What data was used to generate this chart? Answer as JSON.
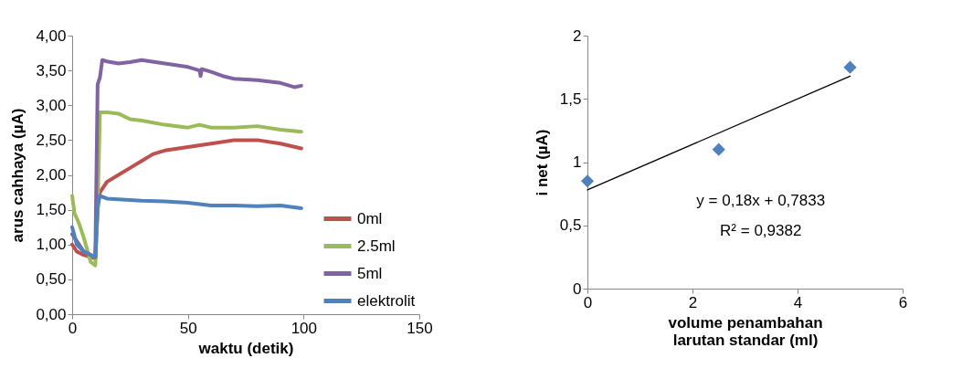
{
  "chart_data": [
    {
      "type": "line",
      "xlabel": "waktu (detik)",
      "ylabel": "arus cahhaya (µA)",
      "xlim": [
        0,
        150
      ],
      "xticks": [
        0,
        50,
        100,
        150
      ],
      "ylim": [
        0,
        4
      ],
      "yticks": [
        {
          "value": 0,
          "label": "0,00"
        },
        {
          "value": 0.5,
          "label": "0,50"
        },
        {
          "value": 1,
          "label": "1,00"
        },
        {
          "value": 1.5,
          "label": "1,50"
        },
        {
          "value": 2,
          "label": "2,00"
        },
        {
          "value": 2.5,
          "label": "2,50"
        },
        {
          "value": 3,
          "label": "3,00"
        },
        {
          "value": 3.5,
          "label": "3,50"
        },
        {
          "value": 4,
          "label": "4,00"
        }
      ],
      "legend": "bottom right",
      "grid": false,
      "line_style": "solid",
      "series": [
        {
          "name": "0ml",
          "color": "#c0504d",
          "x": [
            0,
            2,
            5,
            10,
            11,
            12,
            15,
            20,
            25,
            30,
            35,
            40,
            50,
            60,
            70,
            80,
            90,
            99
          ],
          "values": [
            1.0,
            0.9,
            0.85,
            0.8,
            1.5,
            1.75,
            1.9,
            2.0,
            2.1,
            2.2,
            2.3,
            2.35,
            2.4,
            2.45,
            2.5,
            2.5,
            2.45,
            2.38
          ]
        },
        {
          "name": "2.5ml",
          "color": "#9bbb59",
          "x": [
            0,
            1,
            3,
            5,
            8,
            10,
            11,
            12,
            15,
            20,
            25,
            30,
            40,
            50,
            55,
            60,
            70,
            80,
            90,
            99
          ],
          "values": [
            1.7,
            1.45,
            1.3,
            1.1,
            0.75,
            0.7,
            1.5,
            2.9,
            2.9,
            2.88,
            2.8,
            2.78,
            2.72,
            2.68,
            2.72,
            2.68,
            2.68,
            2.7,
            2.65,
            2.62
          ]
        },
        {
          "name": "5ml",
          "color": "#8064a2",
          "x": [
            0,
            5,
            10,
            11,
            12,
            13,
            15,
            20,
            25,
            30,
            40,
            50,
            55,
            55.5,
            56,
            60,
            65,
            70,
            80,
            90,
            96,
            99
          ],
          "values": [
            1.15,
            0.9,
            0.82,
            3.3,
            3.4,
            3.65,
            3.63,
            3.6,
            3.62,
            3.65,
            3.6,
            3.55,
            3.5,
            3.42,
            3.52,
            3.48,
            3.42,
            3.38,
            3.36,
            3.32,
            3.26,
            3.28
          ]
        },
        {
          "name": "elektrolit",
          "color": "#4f81bd",
          "x": [
            0,
            2,
            5,
            10,
            11,
            12,
            15,
            20,
            30,
            40,
            50,
            60,
            70,
            80,
            90,
            99
          ],
          "values": [
            1.25,
            1.0,
            0.9,
            0.82,
            1.6,
            1.7,
            1.66,
            1.65,
            1.63,
            1.62,
            1.6,
            1.56,
            1.56,
            1.55,
            1.56,
            1.52
          ]
        }
      ]
    },
    {
      "type": "scatter",
      "xlabel": "volume penambahan larutan standar (ml)",
      "ylabel": "i net (µA)",
      "xlim": [
        0,
        6
      ],
      "xticks": [
        0,
        2,
        4,
        6
      ],
      "ylim": [
        0,
        2
      ],
      "yticks": [
        0,
        {
          "value": 0.5,
          "label": "0,5"
        },
        1,
        {
          "value": 1.5,
          "label": "1,5"
        },
        2
      ],
      "legend": false,
      "grid": false,
      "annotations": [
        "y = 0,18x + 0,7833",
        "R² = 0,9382"
      ],
      "series": [
        {
          "color": "#4f81bd",
          "marker": "diamond",
          "x": [
            0,
            2.5,
            5
          ],
          "values": [
            0.85,
            1.1,
            1.75
          ]
        },
        {
          "type": "line",
          "color": "#000000",
          "x": [
            0,
            5
          ],
          "values": [
            0.78,
            1.68
          ]
        }
      ]
    }
  ]
}
